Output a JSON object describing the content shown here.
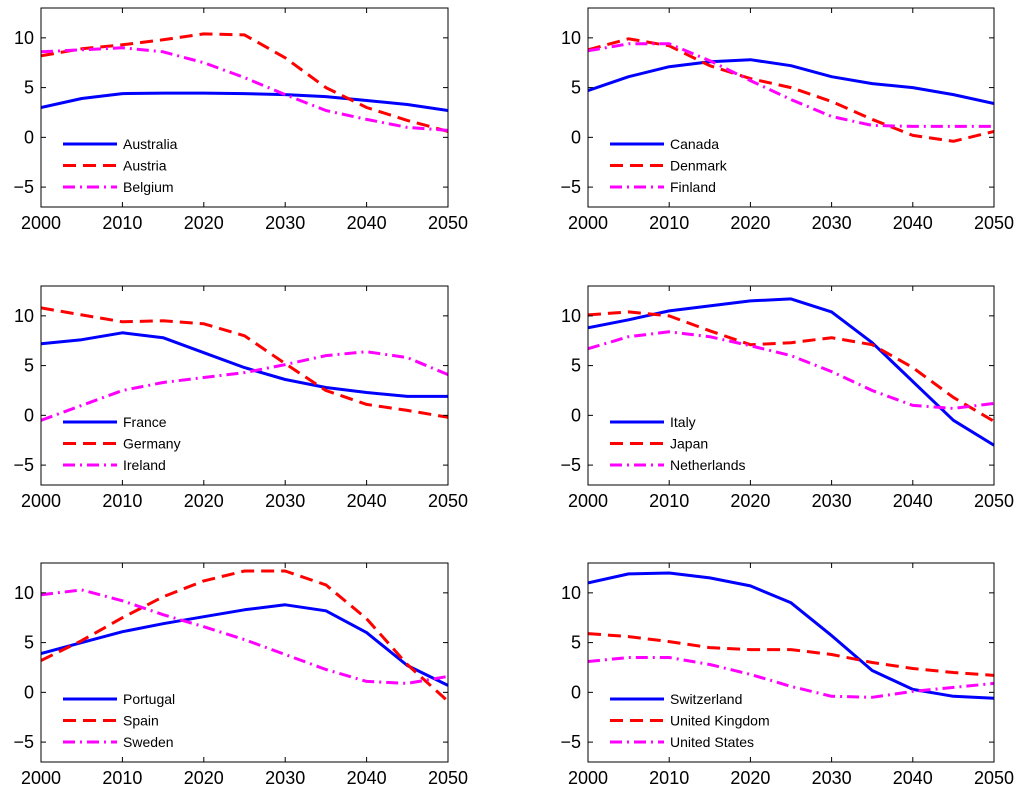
{
  "chart_data": [
    {
      "type": "line",
      "x": [
        2000,
        2005,
        2010,
        2015,
        2020,
        2025,
        2030,
        2035,
        2040,
        2045,
        2050
      ],
      "xlim": [
        2000,
        2050
      ],
      "ylim": [
        -7,
        13
      ],
      "xticks": [
        2000,
        2010,
        2020,
        2030,
        2040,
        2050
      ],
      "yticks": [
        -5,
        0,
        5,
        10
      ],
      "legend_position": "lower-left",
      "grid": false,
      "series": [
        {
          "name": "Australia",
          "color": "#0000ff",
          "style": "solid",
          "values": [
            3.0,
            3.9,
            4.4,
            4.45,
            4.45,
            4.4,
            4.3,
            4.1,
            3.7,
            3.3,
            2.7
          ]
        },
        {
          "name": "Austria",
          "color": "#ff0000",
          "style": "dashed",
          "values": [
            8.2,
            8.9,
            9.3,
            9.8,
            10.4,
            10.3,
            8.0,
            5.0,
            3.0,
            1.7,
            0.6
          ]
        },
        {
          "name": "Belgium",
          "color": "#ff00ff",
          "style": "dashdot",
          "values": [
            8.6,
            8.8,
            9.0,
            8.6,
            7.5,
            6.0,
            4.3,
            2.7,
            1.8,
            1.0,
            0.7
          ]
        }
      ]
    },
    {
      "type": "line",
      "x": [
        2000,
        2005,
        2010,
        2015,
        2020,
        2025,
        2030,
        2035,
        2040,
        2045,
        2050
      ],
      "xlim": [
        2000,
        2050
      ],
      "ylim": [
        -7,
        13
      ],
      "xticks": [
        2000,
        2010,
        2020,
        2030,
        2040,
        2050
      ],
      "yticks": [
        -5,
        0,
        5,
        10
      ],
      "legend_position": "lower-left",
      "grid": false,
      "series": [
        {
          "name": "Canada",
          "color": "#0000ff",
          "style": "solid",
          "values": [
            4.7,
            6.1,
            7.1,
            7.6,
            7.8,
            7.2,
            6.1,
            5.4,
            5.0,
            4.3,
            3.4
          ]
        },
        {
          "name": "Denmark",
          "color": "#ff0000",
          "style": "dashed",
          "values": [
            8.8,
            9.9,
            9.2,
            7.2,
            5.9,
            5.0,
            3.6,
            1.8,
            0.2,
            -0.4,
            0.6
          ]
        },
        {
          "name": "Finland",
          "color": "#ff00ff",
          "style": "dashdot",
          "values": [
            8.7,
            9.4,
            9.4,
            7.7,
            5.7,
            3.8,
            2.1,
            1.2,
            1.1,
            1.1,
            1.1
          ]
        }
      ]
    },
    {
      "type": "line",
      "x": [
        2000,
        2005,
        2010,
        2015,
        2020,
        2025,
        2030,
        2035,
        2040,
        2045,
        2050
      ],
      "xlim": [
        2000,
        2050
      ],
      "ylim": [
        -7,
        13
      ],
      "xticks": [
        2000,
        2010,
        2020,
        2030,
        2040,
        2050
      ],
      "yticks": [
        -5,
        0,
        5,
        10
      ],
      "legend_position": "lower-left",
      "grid": false,
      "series": [
        {
          "name": "France",
          "color": "#0000ff",
          "style": "solid",
          "values": [
            7.2,
            7.6,
            8.3,
            7.8,
            6.3,
            4.8,
            3.6,
            2.8,
            2.3,
            1.9,
            1.9
          ]
        },
        {
          "name": "Germany",
          "color": "#ff0000",
          "style": "dashed",
          "values": [
            10.8,
            10.1,
            9.4,
            9.5,
            9.2,
            8.0,
            5.2,
            2.5,
            1.1,
            0.5,
            -0.2
          ]
        },
        {
          "name": "Ireland",
          "color": "#ff00ff",
          "style": "dashdot",
          "values": [
            -0.5,
            1.0,
            2.5,
            3.3,
            3.8,
            4.3,
            5.1,
            6.0,
            6.4,
            5.8,
            4.1
          ]
        }
      ]
    },
    {
      "type": "line",
      "x": [
        2000,
        2005,
        2010,
        2015,
        2020,
        2025,
        2030,
        2035,
        2040,
        2045,
        2050
      ],
      "xlim": [
        2000,
        2050
      ],
      "ylim": [
        -7,
        13
      ],
      "xticks": [
        2000,
        2010,
        2020,
        2030,
        2040,
        2050
      ],
      "yticks": [
        -5,
        0,
        5,
        10
      ],
      "legend_position": "lower-left",
      "grid": false,
      "series": [
        {
          "name": "Italy",
          "color": "#0000ff",
          "style": "solid",
          "values": [
            8.8,
            9.6,
            10.5,
            11.0,
            11.5,
            11.7,
            10.4,
            7.3,
            3.4,
            -0.5,
            -3.0
          ]
        },
        {
          "name": "Japan",
          "color": "#ff0000",
          "style": "dashed",
          "values": [
            10.1,
            10.4,
            10.0,
            8.5,
            7.1,
            7.3,
            7.8,
            7.1,
            4.8,
            1.8,
            -0.6
          ]
        },
        {
          "name": "Netherlands",
          "color": "#ff00ff",
          "style": "dashdot",
          "values": [
            6.7,
            7.9,
            8.4,
            7.9,
            7.0,
            6.0,
            4.4,
            2.5,
            1.0,
            0.7,
            1.2
          ]
        }
      ]
    },
    {
      "type": "line",
      "x": [
        2000,
        2005,
        2010,
        2015,
        2020,
        2025,
        2030,
        2035,
        2040,
        2045,
        2050
      ],
      "xlim": [
        2000,
        2050
      ],
      "ylim": [
        -7,
        13
      ],
      "xticks": [
        2000,
        2010,
        2020,
        2030,
        2040,
        2050
      ],
      "yticks": [
        -5,
        0,
        5,
        10
      ],
      "legend_position": "lower-left",
      "grid": false,
      "series": [
        {
          "name": "Portugal",
          "color": "#0000ff",
          "style": "solid",
          "values": [
            3.9,
            5.0,
            6.1,
            6.9,
            7.6,
            8.3,
            8.8,
            8.2,
            6.0,
            2.7,
            0.7
          ]
        },
        {
          "name": "Spain",
          "color": "#ff0000",
          "style": "dashed",
          "values": [
            3.2,
            5.2,
            7.5,
            9.6,
            11.2,
            12.2,
            12.2,
            10.8,
            7.4,
            2.8,
            -0.9
          ]
        },
        {
          "name": "Sweden",
          "color": "#ff00ff",
          "style": "dashdot",
          "values": [
            9.8,
            10.3,
            9.2,
            7.8,
            6.6,
            5.3,
            3.8,
            2.3,
            1.1,
            0.9,
            1.6
          ]
        }
      ]
    },
    {
      "type": "line",
      "x": [
        2000,
        2005,
        2010,
        2015,
        2020,
        2025,
        2030,
        2035,
        2040,
        2045,
        2050
      ],
      "xlim": [
        2000,
        2050
      ],
      "ylim": [
        -7,
        13
      ],
      "xticks": [
        2000,
        2010,
        2020,
        2030,
        2040,
        2050
      ],
      "yticks": [
        -5,
        0,
        5,
        10
      ],
      "legend_position": "lower-left",
      "grid": false,
      "series": [
        {
          "name": "Switzerland",
          "color": "#0000ff",
          "style": "solid",
          "values": [
            11.0,
            11.9,
            12.0,
            11.5,
            10.7,
            9.0,
            5.7,
            2.2,
            0.3,
            -0.4,
            -0.6
          ]
        },
        {
          "name": "United Kingdom",
          "color": "#ff0000",
          "style": "dashed",
          "values": [
            5.9,
            5.6,
            5.1,
            4.5,
            4.3,
            4.3,
            3.8,
            3.0,
            2.4,
            2.0,
            1.7
          ]
        },
        {
          "name": "United States",
          "color": "#ff00ff",
          "style": "dashdot",
          "values": [
            3.1,
            3.5,
            3.5,
            2.8,
            1.8,
            0.6,
            -0.4,
            -0.5,
            0.1,
            0.5,
            0.9
          ]
        }
      ]
    }
  ]
}
